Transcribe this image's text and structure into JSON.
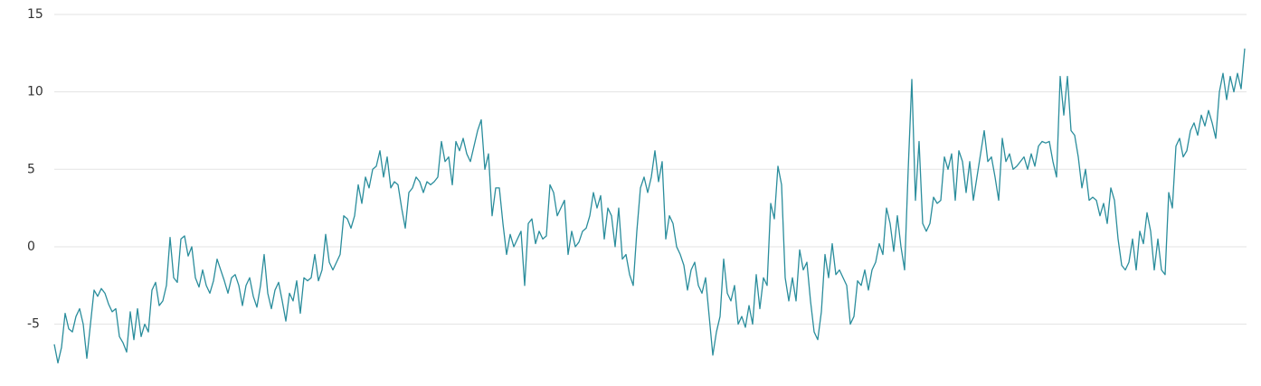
{
  "chart_data": {
    "type": "line",
    "color": "#2a8d9c",
    "grid": true,
    "ylim": [
      -8,
      15
    ],
    "yticks": [
      -5,
      0,
      5,
      10,
      15
    ],
    "values": [
      -6.3,
      -7.5,
      -6.5,
      -4.3,
      -5.3,
      -5.5,
      -4.5,
      -4,
      -5,
      -7.2,
      -5,
      -2.8,
      -3.2,
      -2.7,
      -3,
      -3.7,
      -4.2,
      -4,
      -5.8,
      -6.2,
      -6.8,
      -4.2,
      -6,
      -4,
      -5.8,
      -5,
      -5.5,
      -2.8,
      -2.3,
      -3.8,
      -3.5,
      -2.5,
      0.6,
      -2,
      -2.3,
      0.5,
      0.7,
      -0.6,
      0,
      -2,
      -2.6,
      -1.5,
      -2.5,
      -3,
      -2.2,
      -0.8,
      -1.5,
      -2.2,
      -3,
      -2,
      -1.8,
      -2.5,
      -3.8,
      -2.5,
      -2,
      -3.2,
      -3.9,
      -2.5,
      -0.5,
      -3,
      -4,
      -2.8,
      -2.3,
      -3.5,
      -4.8,
      -3,
      -3.5,
      -2.2,
      -4.3,
      -2,
      -2.2,
      -2,
      -0.5,
      -2.2,
      -1.5,
      0.8,
      -1,
      -1.5,
      -1,
      -0.5,
      2,
      1.8,
      1.2,
      2,
      4,
      2.8,
      4.5,
      3.8,
      5,
      5.2,
      6.2,
      4.5,
      5.8,
      3.8,
      4.2,
      4,
      2.5,
      1.2,
      3.5,
      3.8,
      4.5,
      4.2,
      3.5,
      4.2,
      4,
      4.2,
      4.5,
      6.8,
      5.5,
      5.8,
      4,
      6.8,
      6.2,
      7,
      6,
      5.5,
      6.5,
      7.5,
      8.2,
      5,
      6,
      2,
      3.8,
      3.8,
      1.5,
      -0.5,
      0.8,
      0,
      0.5,
      1,
      -2.5,
      1.5,
      1.8,
      0.2,
      1,
      0.5,
      0.7,
      4,
      3.5,
      2,
      2.5,
      3,
      -0.5,
      1,
      0,
      0.3,
      1,
      1.2,
      2,
      3.5,
      2.5,
      3.3,
      0.5,
      2.5,
      2,
      0,
      2.5,
      -0.8,
      -0.5,
      -1.8,
      -2.5,
      1,
      3.8,
      4.5,
      3.5,
      4.5,
      6.2,
      4.2,
      5.5,
      0.5,
      2,
      1.5,
      0,
      -0.5,
      -1.2,
      -2.8,
      -1.5,
      -1,
      -2.5,
      -3,
      -2,
      -4.5,
      -7,
      -5.5,
      -4.5,
      -0.8,
      -3,
      -3.5,
      -2.5,
      -5,
      -4.5,
      -5.2,
      -3.8,
      -5,
      -1.8,
      -4,
      -2,
      -2.5,
      2.8,
      1.8,
      5.2,
      4,
      -2,
      -3.5,
      -2,
      -3.5,
      -0.2,
      -1.5,
      -1,
      -3.5,
      -5.5,
      -6,
      -4.2,
      -0.5,
      -2,
      0.2,
      -1.8,
      -1.5,
      -2,
      -2.5,
      -5,
      -4.5,
      -2.2,
      -2.5,
      -1.5,
      -2.8,
      -1.5,
      -1,
      0.2,
      -0.5,
      2.5,
      1.5,
      -0.3,
      2,
      0,
      -1.5,
      5,
      10.8,
      3,
      6.8,
      1.5,
      1,
      1.5,
      3.2,
      2.8,
      3,
      5.8,
      5,
      6,
      3,
      6.2,
      5.5,
      3.5,
      5.5,
      3,
      4.5,
      6,
      7.5,
      5.5,
      5.8,
      4.5,
      3,
      7,
      5.5,
      6,
      5,
      5.2,
      5.5,
      5.8,
      5,
      6,
      5.2,
      6.5,
      6.8,
      6.7,
      6.8,
      5.5,
      4.5,
      11,
      8.5,
      11,
      7.5,
      7.2,
      5.8,
      3.8,
      5,
      3,
      3.2,
      3,
      2,
      2.8,
      1.5,
      3.8,
      3,
      0.5,
      -1.2,
      -1.5,
      -1,
      0.5,
      -1.5,
      1,
      0.2,
      2.2,
      1,
      -1.5,
      0.5,
      -1.5,
      -1.8,
      3.5,
      2.5,
      6.5,
      7,
      5.8,
      6.2,
      7.5,
      8,
      7.2,
      8.5,
      7.8,
      8.8,
      8,
      7,
      10,
      11.2,
      9.5,
      11,
      10,
      11.2,
      10.2,
      12.8
    ]
  }
}
